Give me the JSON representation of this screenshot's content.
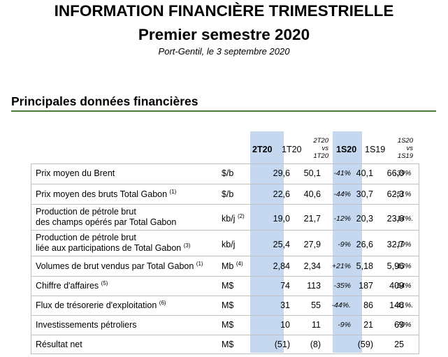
{
  "header": {
    "title": "INFORMATION FINANCIÈRE TRIMESTRIELLE",
    "subtitle": "Premier semestre 2020",
    "place_date": "Port-Gentil, le 3 septembre 2020"
  },
  "section_title": "Principales données financières",
  "columns": {
    "c2t20": "2T20",
    "c1t20": "1T20",
    "var_q_l1": "2T20",
    "var_q_l2": "vs",
    "var_q_l3": "1T20",
    "c1s20": "1S20",
    "c1s19": "1S19",
    "var_s_l1": "1S20",
    "var_s_l2": "vs",
    "var_s_l3": "1S19"
  },
  "rows": [
    {
      "label1": "Prix moyen du Brent",
      "sup1": "",
      "label2": "",
      "sup2": "",
      "unit": "$/b",
      "unit_sup": "",
      "v2t20": "29,6",
      "v1t20": "50,1",
      "varq": "-41%",
      "v1s20": "40,1",
      "v1s19": "66,0",
      "vars": "-39%"
    },
    {
      "label1": "Prix moyen des bruts Total Gabon",
      "sup1": "(1)",
      "label2": "",
      "sup2": "",
      "unit": "$/b",
      "unit_sup": "",
      "v2t20": "22,6",
      "v1t20": "40,6",
      "varq": "-44%",
      "v1s20": "30,7",
      "v1s19": "62,3",
      "vars": "-51%"
    },
    {
      "label1": "Production de pétrole brut",
      "sup1": "",
      "label2": "des champs opérés par Total Gabon",
      "sup2": "",
      "unit": "kb/j",
      "unit_sup": "(2)",
      "v2t20": "19,0",
      "v1t20": "21,7",
      "varq": "-12%",
      "v1s20": "20,3",
      "v1s19": "23,6",
      "vars": "-14%."
    },
    {
      "label1": "Production de pétrole brut",
      "sup1": "",
      "label2": "liée aux participations de Total Gabon",
      "sup2": "(3)",
      "unit": "kb/j",
      "unit_sup": "",
      "v2t20": "25,4",
      "v1t20": "27,9",
      "varq": "-9%",
      "v1s20": "26,6",
      "v1s19": "32,7",
      "vars": "-19%"
    },
    {
      "label1": "Volumes de brut vendus par Total Gabon",
      "sup1": "(1)",
      "label2": "",
      "sup2": "",
      "unit": "Mb",
      "unit_sup": "(4)",
      "v2t20": "2,84",
      "v1t20": "2,34",
      "varq": "+21%",
      "v1s20": "5,18",
      "v1s19": "5,96",
      "vars": "-13%"
    },
    {
      "label1": "Chiffre d'affaires",
      "sup1": "(5)",
      "label2": "",
      "sup2": "",
      "unit": "M$",
      "unit_sup": "",
      "v2t20": "74",
      "v1t20": "113",
      "varq": "-35%",
      "v1s20": "187",
      "v1s19": "409",
      "vars": "-54%"
    },
    {
      "label1": "Flux de trésorerie d'exploitation",
      "sup1": "(6)",
      "label2": "",
      "sup2": "",
      "unit": "M$",
      "unit_sup": "",
      "v2t20": "31",
      "v1t20": "55",
      "varq": "-44%.",
      "v1s20": "86",
      "v1s19": "146",
      "vars": "-41%."
    },
    {
      "label1": "Investissements pétroliers",
      "sup1": "",
      "label2": "",
      "sup2": "",
      "unit": "M$",
      "unit_sup": "",
      "v2t20": "10",
      "v1t20": "11",
      "varq": "-9%",
      "v1s20": "21",
      "v1s19": "69",
      "vars": "-70%"
    },
    {
      "label1": "Résultat net",
      "sup1": "",
      "label2": "",
      "sup2": "",
      "unit": "M$",
      "unit_sup": "",
      "v2t20": "(51)",
      "v1t20": "(8)",
      "varq": "",
      "v1s20": "(59)",
      "v1s19": "25",
      "vars": ""
    }
  ]
}
